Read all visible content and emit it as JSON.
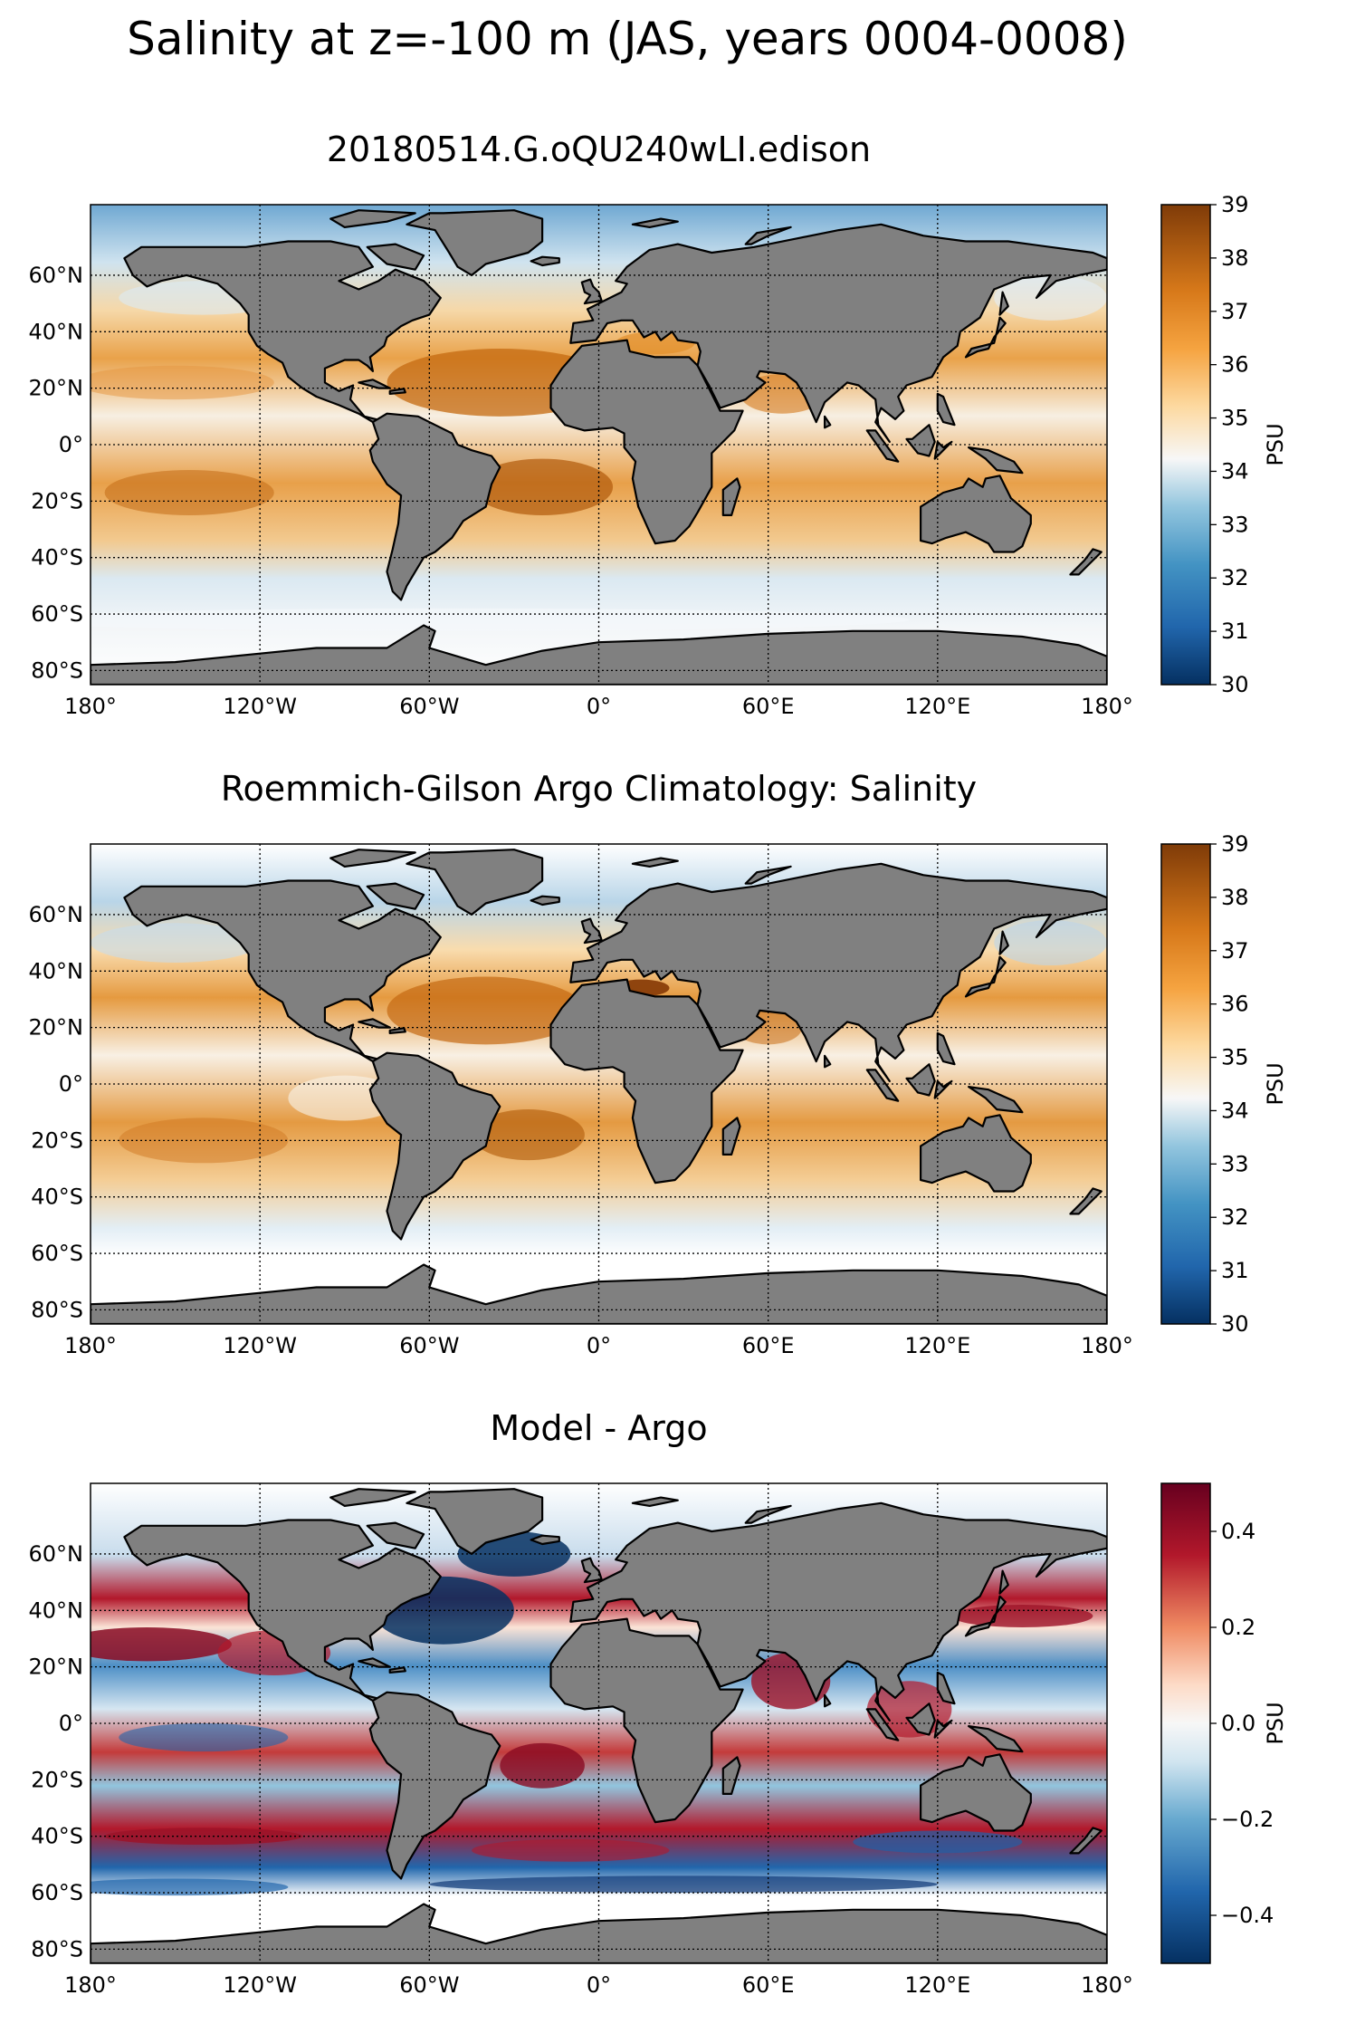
{
  "figure": {
    "suptitle": "Salinity at z=-100 m (JAS, years 0004-0008)"
  },
  "colors": {
    "land": "#808080",
    "coast": "#000000",
    "grid": "#000000",
    "salinity_low": "#053061",
    "salinity_mid": "#f7f7f7",
    "salinity_high": "#7f3b08",
    "diff_low": "#053061",
    "diff_mid": "#f7f7f7",
    "diff_high": "#67001f"
  },
  "panels": [
    {
      "title": "20180514.G.oQU240wLI.edison",
      "colormap": "BrBG_r (salinity)",
      "cb_ticks": [
        "39",
        "38",
        "37",
        "36",
        "35",
        "34",
        "33",
        "32",
        "31",
        "30"
      ],
      "cb_label": "PSU"
    },
    {
      "title": "Roemmich-Gilson Argo Climatology: Salinity",
      "colormap": "BrBG_r (salinity)",
      "cb_ticks": [
        "39",
        "38",
        "37",
        "36",
        "35",
        "34",
        "33",
        "32",
        "31",
        "30"
      ],
      "cb_label": "PSU"
    },
    {
      "title": "Model - Argo",
      "colormap": "RdBu_r (difference)",
      "cb_ticks": [
        "0.4",
        "0.2",
        "0.0",
        "−0.2",
        "−0.4"
      ],
      "cb_label": "PSU"
    }
  ],
  "axes": {
    "lat_ticks": [
      "60°N",
      "40°N",
      "20°N",
      "0°",
      "20°S",
      "40°S",
      "60°S",
      "80°S"
    ],
    "lon_ticks": [
      "180°",
      "120°W",
      "60°W",
      "0°",
      "60°E",
      "120°E",
      "180°"
    ]
  },
  "chart_data": [
    {
      "type": "heatmap",
      "title": "20180514.G.oQU240wLI.edison",
      "colorbar": {
        "min": 30,
        "max": 39,
        "label": "PSU"
      },
      "xlim": [
        -180,
        180
      ],
      "ylim": [
        -85,
        85
      ],
      "grid": true
    },
    {
      "type": "heatmap",
      "title": "Roemmich-Gilson Argo Climatology: Salinity",
      "colorbar": {
        "min": 30,
        "max": 39,
        "label": "PSU"
      },
      "xlim": [
        -180,
        180
      ],
      "ylim": [
        -85,
        85
      ],
      "grid": true
    },
    {
      "type": "heatmap",
      "title": "Model - Argo",
      "colorbar": {
        "min": -0.5,
        "max": 0.5,
        "label": "PSU"
      },
      "xlim": [
        -180,
        180
      ],
      "ylim": [
        -85,
        85
      ],
      "grid": true
    }
  ]
}
